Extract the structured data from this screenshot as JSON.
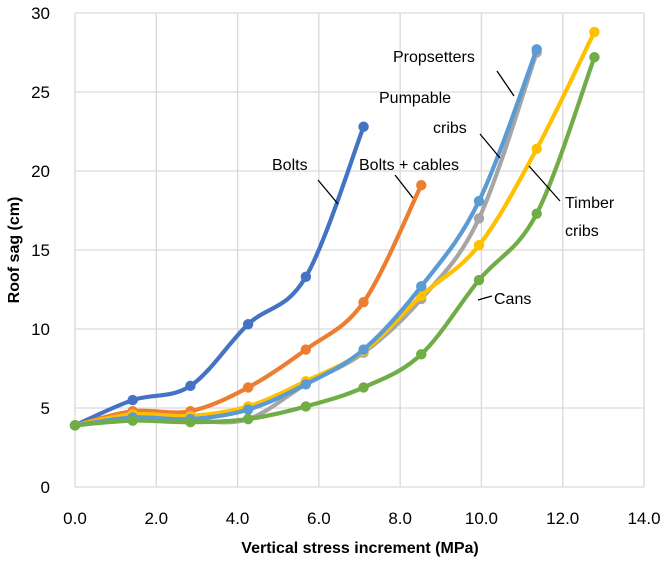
{
  "chart_data": {
    "type": "line",
    "title": "",
    "xlabel": "Vertical stress increment (MPa)",
    "ylabel": "Roof sag (cm)",
    "xlim": [
      0,
      14
    ],
    "ylim": [
      0,
      30
    ],
    "xticks": [
      "0.0",
      "2.0",
      "4.0",
      "6.0",
      "8.0",
      "10.0",
      "12.0",
      "14.0"
    ],
    "yticks": [
      "0",
      "5",
      "10",
      "15",
      "20",
      "25",
      "30"
    ],
    "grid": true,
    "legend": "none (direct annotations)",
    "series": [
      {
        "name": "Bolts",
        "color": "#4472C4",
        "x": [
          0,
          1.42,
          2.84,
          4.26,
          5.68,
          7.1
        ],
        "values": [
          3.9,
          5.5,
          6.4,
          10.3,
          13.3,
          22.8
        ]
      },
      {
        "name": "Bolts + cables",
        "color": "#ED7D31",
        "x": [
          0,
          1.42,
          2.84,
          4.26,
          5.68,
          7.1,
          8.52
        ],
        "values": [
          3.9,
          4.8,
          4.8,
          6.3,
          8.7,
          11.7,
          19.1
        ]
      },
      {
        "name": "Pumpable cribs",
        "color": "#A5A5A5",
        "x": [
          0,
          1.42,
          2.84,
          4.26,
          5.68,
          7.1,
          8.52,
          9.94,
          11.36
        ],
        "values": [
          3.9,
          4.3,
          4.2,
          4.3,
          6.5,
          8.5,
          11.9,
          17.0,
          27.5
        ]
      },
      {
        "name": "Timber cribs",
        "color": "#FFC000",
        "x": [
          0,
          1.42,
          2.84,
          4.26,
          5.68,
          7.1,
          8.52,
          9.94,
          11.36,
          12.78
        ],
        "values": [
          3.9,
          4.6,
          4.5,
          5.1,
          6.7,
          8.6,
          12.1,
          15.3,
          21.4,
          28.8
        ]
      },
      {
        "name": "Propsetters",
        "color": "#5B9BD5",
        "x": [
          0,
          1.42,
          2.84,
          4.26,
          5.68,
          7.1,
          8.52,
          9.94,
          11.36
        ],
        "values": [
          3.9,
          4.4,
          4.3,
          4.9,
          6.5,
          8.7,
          12.7,
          18.1,
          27.7
        ]
      },
      {
        "name": "Cans",
        "color": "#70AD47",
        "x": [
          0,
          1.42,
          2.84,
          4.26,
          5.68,
          7.1,
          8.52,
          9.94,
          11.36,
          12.78
        ],
        "values": [
          3.9,
          4.2,
          4.1,
          4.3,
          5.1,
          6.3,
          8.4,
          13.1,
          17.3,
          27.2
        ]
      }
    ],
    "annotations": [
      {
        "text": "Bolts"
      },
      {
        "text": "Bolts + cables"
      },
      {
        "text": "Propsetters"
      },
      {
        "text": "Pumpable"
      },
      {
        "text": "cribs"
      },
      {
        "text": "Timber"
      },
      {
        "text": "cribs"
      },
      {
        "text": "Cans"
      }
    ]
  }
}
